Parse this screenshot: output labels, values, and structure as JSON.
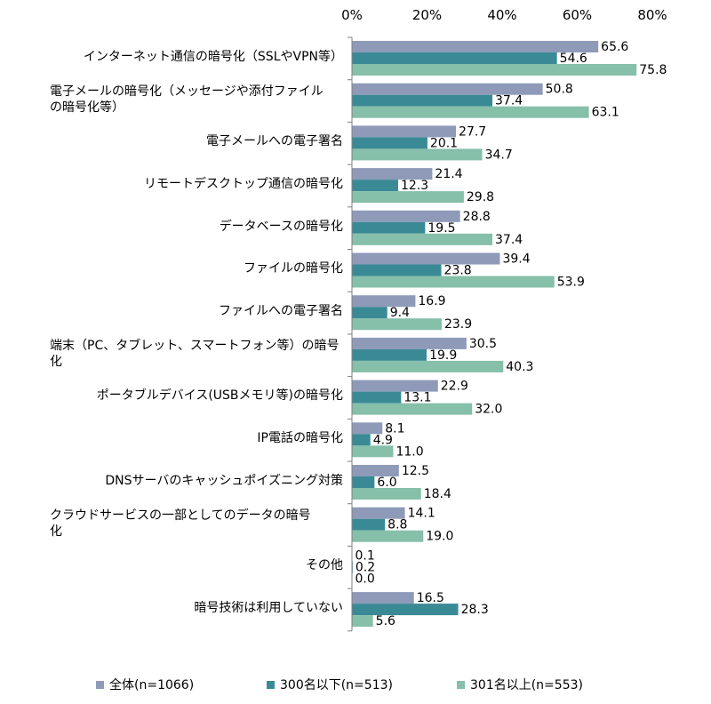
{
  "chart_data": {
    "type": "bar",
    "orientation": "horizontal",
    "title": "",
    "xlabel": "",
    "ylabel": "",
    "xlim": [
      0,
      80
    ],
    "ticks": [
      "0%",
      "20%",
      "40%",
      "60%",
      "80%"
    ],
    "categories": [
      [
        "インターネット通信の暗号化（SSLやVPN等）"
      ],
      [
        "電子メールの暗号化（メッセージや添付ファイル",
        "の暗号化等）"
      ],
      [
        "電子メールへの電子署名"
      ],
      [
        "リモートデスクトップ通信の暗号化"
      ],
      [
        "データベースの暗号化"
      ],
      [
        "ファイルの暗号化"
      ],
      [
        "ファイルへの電子署名"
      ],
      [
        "端末（PC、タブレット、スマートフォン等）の暗号",
        "化"
      ],
      [
        "ポータブルデバイス(USBメモリ等)の暗号化"
      ],
      [
        "IP電話の暗号化"
      ],
      [
        "DNSサーバのキャッシュポイズニング対策"
      ],
      [
        "クラウドサービスの一部としてのデータの暗号",
        "化"
      ],
      [
        "その他"
      ],
      [
        "暗号技術は利用していない"
      ]
    ],
    "series": [
      {
        "name": "全体(n=1066)",
        "color": "#8e9ab8",
        "values": [
          65.6,
          50.8,
          27.7,
          21.4,
          28.8,
          39.4,
          16.9,
          30.5,
          22.9,
          8.1,
          12.5,
          14.1,
          0.1,
          16.5
        ],
        "labels": [
          "65.6",
          "50.8",
          "27.7",
          "21.4",
          "28.8",
          "39.4",
          "16.9",
          "30.5",
          "22.9",
          "8.1",
          "12.5",
          "14.1",
          "0.1",
          "16.5"
        ]
      },
      {
        "name": "300名以下(n=513)",
        "color": "#3a8a96",
        "values": [
          54.6,
          37.4,
          20.1,
          12.3,
          19.5,
          23.8,
          9.4,
          19.9,
          13.1,
          4.9,
          6.0,
          8.8,
          0.2,
          28.3
        ],
        "labels": [
          "54.6",
          "37.4",
          "20.1",
          "12.3",
          "19.5",
          "23.8",
          "9.4",
          "19.9",
          "13.1",
          "4.9",
          "6.0",
          "8.8",
          "0.2",
          "28.3"
        ]
      },
      {
        "name": "301名以上(n=553)",
        "color": "#86bfaa",
        "values": [
          75.8,
          63.1,
          34.7,
          29.8,
          37.4,
          53.9,
          23.9,
          40.3,
          32.0,
          11.0,
          18.4,
          19.0,
          0.0,
          5.6
        ],
        "labels": [
          "75.8",
          "63.1",
          "34.7",
          "29.8",
          "37.4",
          "53.9",
          "23.9",
          "40.3",
          "32.0",
          "11.0",
          "18.4",
          "19.0",
          "0.0",
          "5.6"
        ]
      }
    ],
    "legend_position": "bottom",
    "grid": false
  }
}
